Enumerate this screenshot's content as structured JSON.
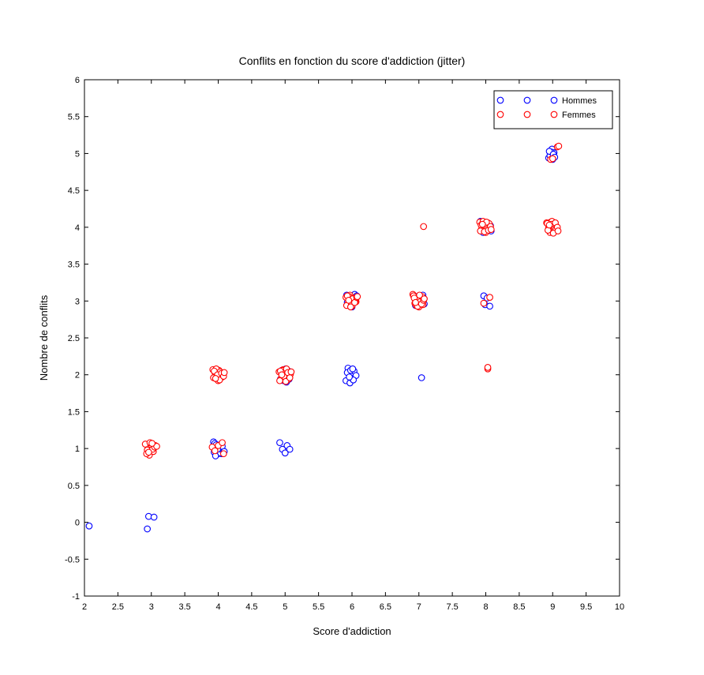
{
  "chart_data": {
    "type": "scatter",
    "title": "Conflits en fonction du score d'addiction (jitter)",
    "xlabel": "Score d'addiction",
    "ylabel": "Nombre de conflits",
    "xlim": [
      2,
      10
    ],
    "ylim": [
      -1,
      6
    ],
    "xticks": [
      "2",
      "2.5",
      "3",
      "3.5",
      "4",
      "4.5",
      "5",
      "5.5",
      "6",
      "6.5",
      "7",
      "7.5",
      "8",
      "8.5",
      "9",
      "9.5",
      "10"
    ],
    "yticks": [
      "-1",
      "-0.5",
      "0",
      "0.5",
      "1",
      "1.5",
      "2",
      "2.5",
      "3",
      "3.5",
      "4",
      "4.5",
      "5",
      "5.5",
      "6"
    ],
    "grid": false,
    "legend_position": "top-right",
    "marker": "open-circle",
    "series": [
      {
        "name": "Hommes",
        "color": "#0000ff",
        "x": [
          2.07,
          2.94,
          2.96,
          3.04,
          3.93,
          3.95,
          3.97,
          4.0,
          4.02,
          4.05,
          3.94,
          3.98,
          4.03,
          4.07,
          3.96,
          4.01,
          4.04,
          4.06,
          4.09,
          3.99,
          4.92,
          4.96,
          5.0,
          5.03,
          5.07,
          4.93,
          4.98,
          5.02,
          5.06,
          4.95,
          5.01,
          5.05,
          5.08,
          4.97,
          5.04,
          5.91,
          5.94,
          5.97,
          6.0,
          6.03,
          6.06,
          5.93,
          5.98,
          6.02,
          5.96,
          6.01,
          5.92,
          5.95,
          5.99,
          6.04,
          6.07,
          5.93,
          5.97,
          6.0,
          6.05,
          7.04,
          6.93,
          6.97,
          7.02,
          7.06,
          6.95,
          7.0,
          7.08,
          7.97,
          7.99,
          8.02,
          8.06,
          7.94,
          7.98,
          8.04,
          7.92,
          7.96,
          8.01,
          8.05,
          8.08,
          7.95,
          8.0,
          8.07,
          8.94,
          8.97,
          8.99,
          9.02,
          8.96,
          8.98,
          9.0,
          8.95,
          9.01,
          9.03
        ],
        "y": [
          -0.05,
          -0.09,
          0.08,
          0.07,
          1.09,
          1.07,
          1.05,
          1.02,
          0.98,
          0.93,
          0.95,
          0.92,
          0.94,
          0.97,
          0.9,
          1.0,
          1.06,
          1.03,
          0.96,
          0.99,
          1.08,
          0.99,
          0.94,
          1.04,
          0.99,
          1.94,
          1.92,
          1.9,
          1.94,
          2.06,
          2.08,
          2.05,
          2.03,
          1.97,
          1.95,
          1.92,
          2.09,
          1.89,
          1.95,
          2.05,
          1.99,
          2.03,
          2.06,
          1.93,
          1.97,
          2.08,
          3.08,
          3.06,
          3.04,
          3.09,
          3.07,
          2.98,
          2.95,
          2.92,
          3.02,
          1.96,
          3.07,
          3.04,
          3.01,
          3.08,
          2.94,
          2.99,
          2.96,
          3.07,
          2.95,
          3.04,
          2.93,
          4.06,
          4.03,
          3.98,
          4.08,
          3.93,
          4.04,
          4.01,
          3.95,
          4.07,
          3.99,
          4.02,
          4.94,
          5.04,
          5.06,
          5.01,
          4.97,
          5.02,
          4.92,
          5.03,
          4.99,
          4.95
        ]
      },
      {
        "name": "Femmes",
        "color": "#ff0000",
        "x": [
          2.91,
          2.94,
          2.97,
          3.0,
          3.03,
          3.06,
          2.93,
          2.98,
          3.02,
          3.05,
          3.08,
          2.96,
          3.01,
          3.92,
          3.95,
          3.98,
          4.01,
          4.04,
          4.07,
          3.93,
          3.97,
          4.0,
          4.03,
          4.06,
          3.94,
          3.99,
          4.02,
          4.05,
          4.08,
          3.96,
          4.09,
          3.91,
          3.95,
          4.0,
          4.06,
          4.08,
          4.91,
          4.94,
          4.97,
          5.0,
          5.03,
          5.06,
          4.92,
          4.96,
          4.99,
          5.02,
          5.05,
          5.08,
          4.93,
          4.98,
          5.01,
          5.04,
          5.07,
          4.95,
          5.09,
          5.91,
          5.94,
          5.97,
          6.0,
          6.03,
          6.06,
          5.92,
          5.96,
          5.99,
          6.02,
          6.05,
          5.93,
          5.98,
          6.01,
          6.04,
          6.07,
          5.95,
          6.08,
          6.91,
          6.94,
          6.97,
          7.0,
          7.03,
          7.06,
          6.92,
          6.96,
          6.99,
          7.02,
          7.05,
          6.93,
          6.98,
          7.01,
          7.04,
          7.07,
          6.95,
          7.08,
          7.07,
          7.91,
          7.94,
          7.97,
          8.0,
          8.03,
          8.06,
          7.92,
          7.96,
          7.99,
          8.02,
          8.05,
          7.93,
          7.98,
          8.01,
          8.04,
          8.07,
          7.95,
          8.08,
          7.97,
          8.06,
          8.03,
          8.03,
          8.91,
          8.94,
          8.97,
          9.0,
          9.03,
          9.06,
          8.92,
          8.96,
          8.99,
          9.02,
          9.05,
          8.93,
          8.98,
          9.01,
          9.04,
          9.07,
          8.95,
          9.08,
          9.07,
          9.09,
          8.97,
          9.0
        ],
        "y": [
          1.06,
          0.98,
          0.91,
          1.05,
          0.96,
          1.04,
          0.93,
          1.08,
          0.99,
          1.02,
          1.03,
          0.95,
          1.07,
          2.07,
          2.03,
          1.94,
          2.06,
          1.99,
          2.01,
          1.96,
          2.08,
          1.92,
          2.04,
          1.97,
          2.05,
          2.0,
          1.93,
          2.02,
          1.98,
          1.95,
          2.03,
          1.02,
          0.97,
          1.04,
          1.08,
          0.93,
          2.04,
          1.95,
          2.07,
          1.93,
          2.02,
          1.99,
          1.92,
          2.06,
          1.97,
          2.08,
          1.94,
          2.01,
          2.05,
          1.98,
          1.91,
          2.03,
          1.96,
          2.0,
          2.04,
          3.05,
          2.96,
          3.08,
          2.93,
          3.02,
          2.99,
          2.94,
          3.06,
          2.97,
          3.04,
          3.0,
          3.07,
          2.92,
          3.03,
          2.98,
          3.05,
          3.01,
          3.06,
          3.09,
          2.97,
          3.05,
          2.92,
          3.03,
          2.95,
          3.07,
          2.94,
          3.02,
          2.99,
          3.06,
          3.04,
          2.93,
          3.08,
          2.96,
          3.01,
          2.98,
          3.03,
          4.01,
          4.07,
          3.98,
          4.04,
          3.93,
          4.06,
          3.99,
          3.95,
          4.08,
          4.02,
          3.97,
          4.05,
          4.03,
          3.94,
          4.07,
          3.96,
          4.01,
          4.04,
          3.97,
          2.97,
          3.05,
          2.08,
          2.1,
          4.06,
          3.99,
          4.07,
          3.94,
          4.03,
          3.98,
          4.05,
          3.93,
          4.08,
          4.01,
          3.97,
          3.96,
          4.04,
          3.92,
          4.06,
          4.0,
          4.03,
          3.95,
          5.09,
          5.1,
          4.92,
          4.93
        ]
      }
    ]
  }
}
